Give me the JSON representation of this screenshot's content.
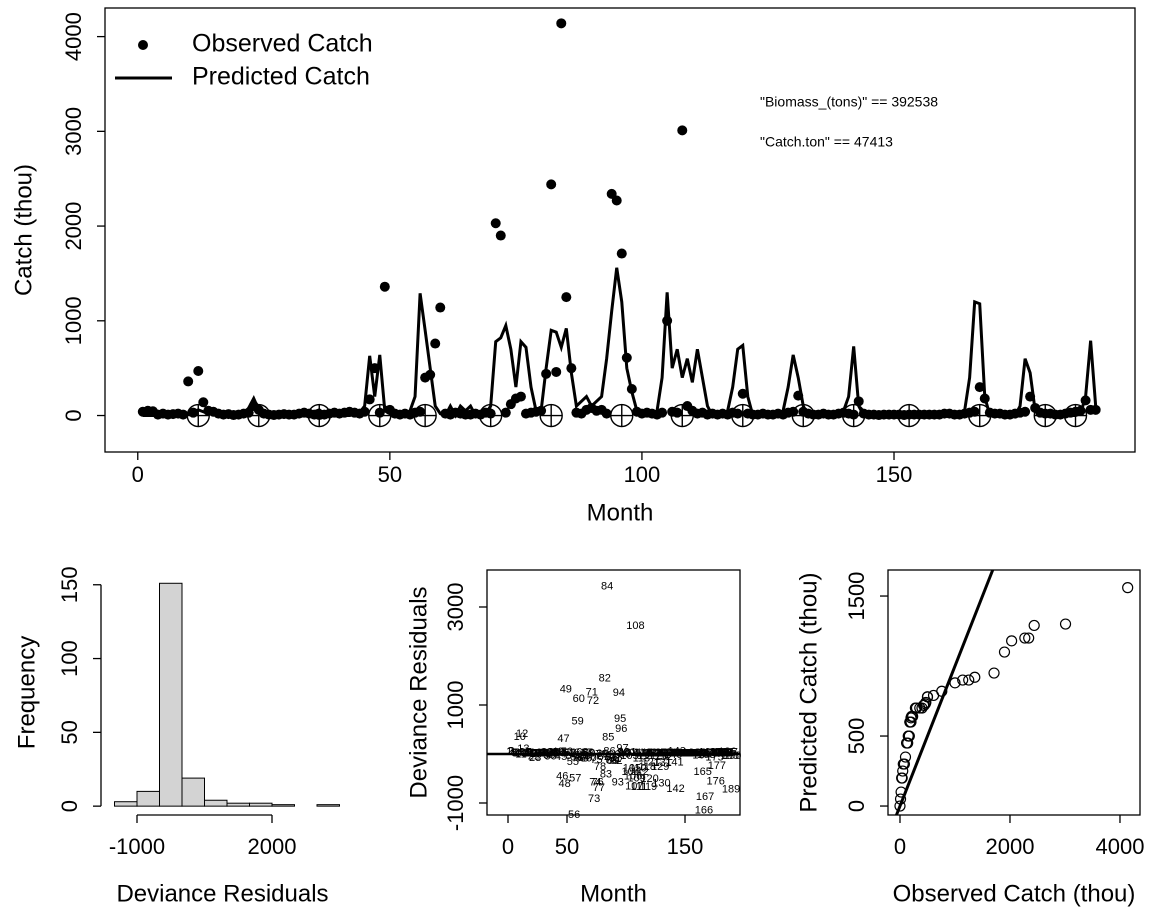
{
  "chart_data": [
    {
      "type": "line",
      "xlabel": "Month",
      "ylabel": "Catch (thou)",
      "x": [
        1,
        2,
        3,
        4,
        5,
        6,
        7,
        8,
        9,
        10,
        11,
        12,
        13,
        14,
        15,
        16,
        17,
        18,
        19,
        20,
        21,
        22,
        23,
        24,
        25,
        26,
        27,
        28,
        29,
        30,
        31,
        32,
        33,
        34,
        35,
        36,
        37,
        38,
        39,
        40,
        41,
        42,
        43,
        44,
        45,
        46,
        47,
        48,
        49,
        50,
        51,
        52,
        53,
        54,
        55,
        56,
        57,
        58,
        59,
        60,
        61,
        62,
        63,
        64,
        65,
        66,
        67,
        68,
        69,
        70,
        71,
        72,
        73,
        74,
        75,
        76,
        77,
        78,
        79,
        80,
        81,
        82,
        83,
        84,
        85,
        86,
        87,
        88,
        89,
        90,
        91,
        92,
        93,
        94,
        95,
        96,
        97,
        98,
        99,
        100,
        101,
        102,
        103,
        104,
        105,
        106,
        107,
        108,
        109,
        110,
        111,
        112,
        113,
        114,
        115,
        116,
        117,
        118,
        119,
        120,
        121,
        122,
        123,
        124,
        125,
        126,
        127,
        128,
        129,
        130,
        131,
        132,
        133,
        134,
        135,
        136,
        137,
        138,
        139,
        140,
        141,
        142,
        143,
        144,
        145,
        146,
        147,
        148,
        149,
        150,
        151,
        152,
        153,
        154,
        155,
        156,
        157,
        158,
        159,
        160,
        161,
        162,
        163,
        164,
        165,
        166,
        167,
        168,
        169,
        170,
        171,
        172,
        173,
        174,
        175,
        176,
        177,
        178,
        179,
        180,
        181,
        182,
        183,
        184,
        185,
        186,
        187,
        188,
        189,
        190
      ],
      "series": [
        {
          "name": "Observed Catch",
          "style": "points",
          "color": "#000000",
          "values": [
            40,
            50,
            45,
            10,
            20,
            10,
            15,
            20,
            10,
            360,
            30,
            470,
            140,
            50,
            40,
            20,
            10,
            15,
            5,
            10,
            20,
            30,
            100,
            60,
            20,
            10,
            5,
            10,
            15,
            10,
            10,
            20,
            30,
            20,
            10,
            5,
            10,
            20,
            30,
            20,
            30,
            40,
            30,
            20,
            40,
            170,
            500,
            30,
            1360,
            60,
            20,
            10,
            20,
            10,
            30,
            40,
            400,
            430,
            760,
            1140,
            20,
            10,
            30,
            20,
            10,
            10,
            20,
            10,
            30,
            20,
            2030,
            1900,
            30,
            120,
            180,
            200,
            20,
            30,
            40,
            50,
            440,
            2440,
            460,
            4140,
            1250,
            500,
            30,
            20,
            60,
            80,
            50,
            60,
            20,
            2340,
            2270,
            1710,
            610,
            280,
            40,
            20,
            30,
            20,
            10,
            30,
            1000,
            40,
            30,
            3010,
            100,
            50,
            20,
            30,
            10,
            20,
            10,
            20,
            10,
            30,
            20,
            230,
            20,
            10,
            10,
            20,
            10,
            10,
            20,
            10,
            30,
            40,
            210,
            40,
            20,
            10,
            10,
            20,
            10,
            10,
            20,
            30,
            20,
            10,
            150,
            20,
            10,
            10,
            5,
            10,
            10,
            10,
            10,
            5,
            10,
            10,
            10,
            10,
            10,
            10,
            10,
            20,
            20,
            10,
            10,
            20,
            30,
            40,
            300,
            180,
            30,
            20,
            20,
            10,
            10,
            20,
            30,
            40,
            200,
            80,
            30,
            20,
            20,
            10,
            10,
            20,
            30,
            40,
            50,
            160,
            60,
            60
          ]
        },
        {
          "name": "Predicted Catch",
          "style": "line",
          "color": "#000000",
          "values": [
            0,
            0,
            0,
            0,
            0,
            0,
            0,
            0,
            10,
            20,
            40,
            60,
            40,
            20,
            10,
            5,
            0,
            0,
            0,
            0,
            10,
            80,
            180,
            60,
            10,
            0,
            0,
            0,
            0,
            0,
            0,
            0,
            0,
            10,
            40,
            60,
            20,
            0,
            0,
            0,
            0,
            0,
            10,
            30,
            100,
            630,
            200,
            640,
            50,
            20,
            0,
            0,
            0,
            50,
            200,
            1290,
            900,
            500,
            100,
            20,
            0,
            100,
            0,
            100,
            50,
            100,
            0,
            0,
            20,
            100,
            780,
            820,
            950,
            700,
            300,
            780,
            720,
            300,
            50,
            50,
            500,
            900,
            880,
            720,
            920,
            450,
            100,
            150,
            200,
            100,
            150,
            200,
            600,
            1100,
            1560,
            1200,
            500,
            250,
            50,
            0,
            0,
            0,
            50,
            400,
            1300,
            500,
            700,
            400,
            600,
            350,
            700,
            400,
            100,
            0,
            0,
            0,
            50,
            300,
            700,
            740,
            200,
            0,
            0,
            0,
            0,
            0,
            0,
            50,
            300,
            640,
            400,
            100,
            0,
            0,
            0,
            0,
            0,
            0,
            0,
            50,
            200,
            730,
            100,
            0,
            0,
            0,
            0,
            0,
            0,
            0,
            0,
            0,
            0,
            0,
            0,
            0,
            0,
            0,
            0,
            0,
            0,
            0,
            0,
            50,
            400,
            1200,
            1180,
            200,
            0,
            0,
            0,
            0,
            0,
            0,
            100,
            600,
            450,
            50,
            0,
            0,
            0,
            0,
            0,
            0,
            0,
            0,
            20,
            200,
            790,
            100
          ]
        }
      ],
      "markers": {
        "x": [
          12,
          24,
          36,
          48,
          57,
          70,
          82,
          96,
          108,
          120,
          132,
          142,
          153,
          167,
          180,
          186
        ],
        "values": [
          0,
          0,
          0,
          0,
          0,
          0,
          0,
          0,
          0,
          0,
          0,
          0,
          0,
          0,
          0,
          0
        ]
      },
      "annotations": [
        "\"Biomass_(tons)\" == 392538",
        "\"Catch.ton\" == 47413"
      ],
      "xlim": [
        -6.5,
        197.8
      ],
      "ylim": [
        -385,
        4302
      ],
      "xticks": [
        0,
        50,
        100,
        150
      ],
      "yticks": [
        0,
        1000,
        2000,
        3000,
        4000
      ],
      "legend": "top-left"
    },
    {
      "type": "histogram",
      "xlabel": "Deviance Residuals",
      "ylabel": "Frequency",
      "color": "#d3d3d3",
      "bins": [
        -1500,
        -1000,
        -500,
        0,
        500,
        1000,
        1500,
        2000,
        2500,
        3000,
        3500
      ],
      "counts": [
        3,
        10,
        151,
        19,
        4,
        2,
        2,
        1,
        0,
        1
      ],
      "xlim": [
        -1800,
        3600
      ],
      "ylim": [
        -6,
        160
      ],
      "xticks": [
        -1000,
        2000
      ],
      "yticks": [
        0,
        50,
        100,
        150
      ]
    },
    {
      "type": "text-scatter",
      "xlabel": "Month",
      "ylabel": "Deviance Residuals",
      "reference_line": 0,
      "x": [
        1,
        2,
        3,
        4,
        5,
        6,
        7,
        8,
        9,
        10,
        11,
        12,
        13,
        14,
        15,
        16,
        17,
        18,
        19,
        20,
        21,
        22,
        23,
        24,
        25,
        26,
        27,
        28,
        29,
        30,
        31,
        32,
        33,
        34,
        35,
        36,
        37,
        38,
        39,
        40,
        41,
        42,
        43,
        44,
        45,
        46,
        47,
        48,
        49,
        50,
        51,
        52,
        53,
        54,
        55,
        56,
        57,
        58,
        59,
        60,
        61,
        62,
        63,
        64,
        65,
        66,
        67,
        68,
        69,
        70,
        71,
        72,
        73,
        74,
        75,
        76,
        77,
        78,
        79,
        80,
        81,
        82,
        83,
        84,
        85,
        86,
        87,
        88,
        89,
        90,
        91,
        92,
        93,
        94,
        95,
        96,
        97,
        98,
        99,
        100,
        101,
        102,
        103,
        104,
        105,
        106,
        107,
        108,
        109,
        110,
        111,
        112,
        113,
        114,
        115,
        116,
        117,
        118,
        119,
        120,
        121,
        122,
        123,
        124,
        125,
        126,
        127,
        128,
        129,
        130,
        131,
        132,
        133,
        134,
        135,
        136,
        137,
        138,
        139,
        140,
        141,
        142,
        143,
        144,
        145,
        146,
        147,
        148,
        149,
        150,
        151,
        152,
        153,
        154,
        155,
        156,
        157,
        158,
        159,
        160,
        161,
        162,
        163,
        164,
        165,
        166,
        167,
        168,
        169,
        170,
        171,
        172,
        173,
        174,
        175,
        176,
        177,
        178,
        179,
        180,
        181,
        182,
        183,
        184,
        185,
        186,
        187,
        188,
        189,
        190
      ],
      "values": [
        40,
        50,
        45,
        10,
        20,
        10,
        15,
        20,
        0,
        340,
        -10,
        410,
        100,
        30,
        30,
        15,
        10,
        15,
        5,
        10,
        10,
        -50,
        -80,
        0,
        10,
        10,
        5,
        10,
        15,
        10,
        10,
        20,
        30,
        10,
        -30,
        -55,
        -10,
        20,
        30,
        20,
        30,
        40,
        20,
        -10,
        -60,
        -460,
        300,
        -610,
        1310,
        40,
        20,
        10,
        20,
        -40,
        -170,
        -1250,
        -500,
        -70,
        660,
        1120,
        20,
        -90,
        30,
        -80,
        -40,
        -90,
        20,
        10,
        10,
        -80,
        1250,
        1080,
        -920,
        -580,
        -120,
        -580,
        -700,
        -270,
        -10,
        0,
        -60,
        1540,
        -420,
        3420,
        330,
        50,
        -70,
        -130,
        -140,
        -20,
        -100,
        -140,
        -580,
        1240,
        710,
        510,
        110,
        30,
        -10,
        20,
        30,
        20,
        -40,
        -370,
        -300,
        -460,
        -670,
        2610,
        -500,
        -300,
        -680,
        -370,
        -90,
        20,
        10,
        20,
        -40,
        -270,
        -680,
        -510,
        -180,
        10,
        10,
        20,
        10,
        10,
        20,
        -40,
        -270,
        -600,
        -190,
        -60,
        20,
        10,
        10,
        20,
        10,
        10,
        20,
        -20,
        -180,
        -720,
        50,
        20,
        10,
        10,
        5,
        10,
        10,
        10,
        10,
        5,
        10,
        10,
        10,
        10,
        10,
        10,
        10,
        20,
        20,
        10,
        10,
        -30,
        -370,
        -1160,
        -880,
        -20,
        30,
        20,
        20,
        10,
        10,
        20,
        -70,
        -560,
        -250,
        30,
        30,
        20,
        20,
        10,
        10,
        20,
        30,
        40,
        30,
        -40,
        -730,
        -40
      ],
      "xlim": [
        -17.8,
        196.6
      ],
      "ylim": [
        -1245,
        3755
      ],
      "xticks": [
        0,
        50,
        150
      ],
      "yticks": [
        -1000,
        1000,
        3000
      ]
    },
    {
      "type": "scatter",
      "xlabel": "Observed Catch (thou)",
      "ylabel": "Predicted Catch (thou)",
      "identity_line": true,
      "x": [
        4140,
        3010,
        2440,
        2340,
        2270,
        2030,
        1900,
        1710,
        1360,
        1250,
        1140,
        1000,
        760,
        610,
        500,
        500,
        470,
        460,
        440,
        430,
        400,
        360,
        300,
        280,
        230,
        210,
        200,
        200,
        180,
        180,
        170,
        160,
        150,
        140,
        120,
        100,
        80,
        60,
        50,
        40,
        30,
        20,
        10,
        0
      ],
      "values": [
        1560,
        1300,
        1290,
        1200,
        1200,
        1180,
        1100,
        950,
        920,
        900,
        900,
        880,
        820,
        790,
        780,
        780,
        740,
        730,
        720,
        720,
        700,
        700,
        700,
        700,
        640,
        640,
        630,
        600,
        600,
        600,
        500,
        500,
        500,
        450,
        450,
        350,
        300,
        300,
        250,
        200,
        200,
        100,
        50,
        0
      ],
      "xlim": [
        -218,
        4364
      ],
      "ylim": [
        -64,
        1686
      ],
      "xticks": [
        0,
        2000,
        4000
      ],
      "yticks": [
        0,
        500,
        1500
      ]
    }
  ]
}
